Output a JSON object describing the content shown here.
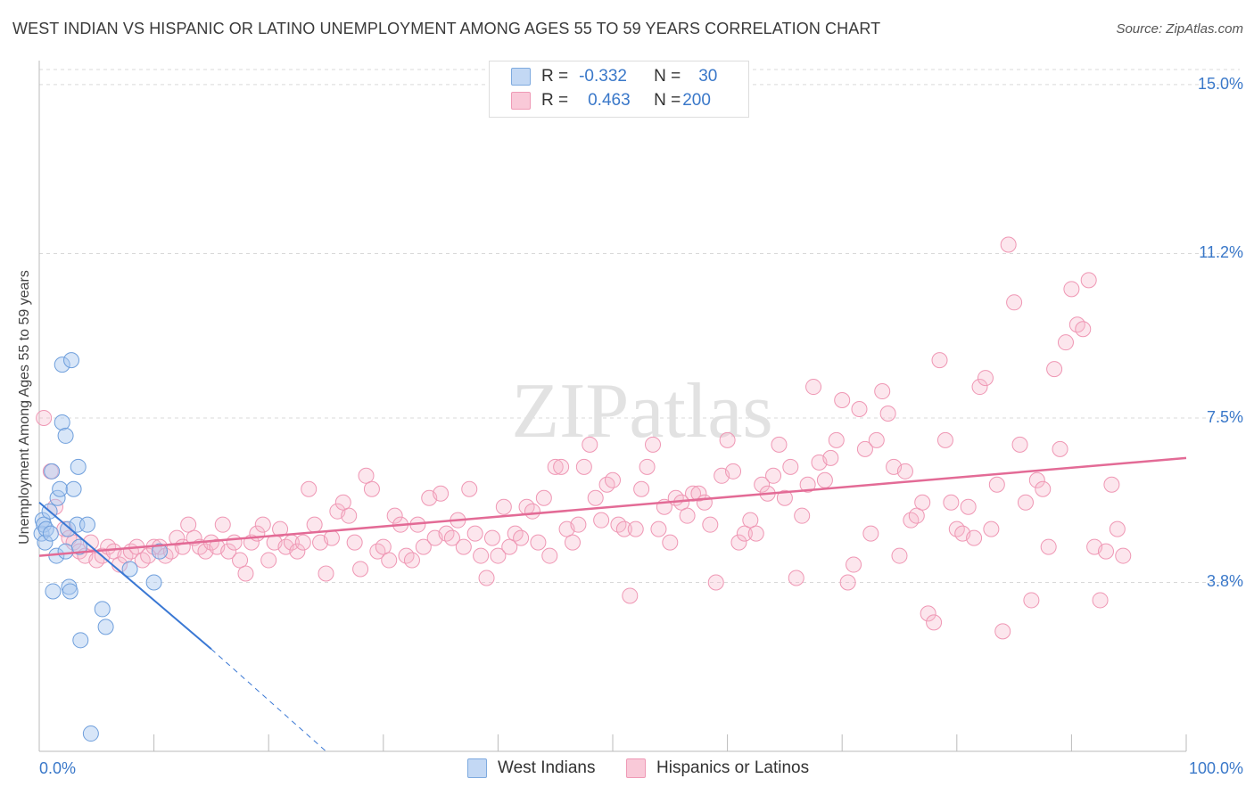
{
  "title": "WEST INDIAN VS HISPANIC OR LATINO UNEMPLOYMENT AMONG AGES 55 TO 59 YEARS CORRELATION CHART",
  "source": "Source: ZipAtlas.com",
  "watermark": "ZIPatlas",
  "legend": {
    "rows": [
      {
        "r_label": "R =",
        "r_value": "-0.332",
        "n_label": "N =",
        "n_value": "30",
        "color": "#a9c8f0"
      },
      {
        "r_label": "R =",
        "r_value": "0.463",
        "n_label": "N =",
        "n_value": "200",
        "color": "#f6b8cc"
      }
    ]
  },
  "bottom_legend": [
    "West Indians",
    "Hispanics or Latinos"
  ],
  "colors": {
    "blue": "#3a78d4",
    "blue_fill": "#a9c8f0",
    "pink": "#e36b96",
    "pink_fill": "#f6b8cc",
    "tick_text": "#3a78c9"
  },
  "chart_data": {
    "type": "scatter",
    "title": "WEST INDIAN VS HISPANIC OR LATINO UNEMPLOYMENT AMONG AGES 55 TO 59 YEARS CORRELATION CHART",
    "xlabel": "",
    "ylabel": "Unemployment Among Ages 55 to 59 years",
    "xlim": [
      0,
      100
    ],
    "ylim": [
      0,
      15.5
    ],
    "x_tick_labels": [
      "0.0%",
      "100.0%"
    ],
    "y_ticks": [
      3.8,
      7.5,
      11.2,
      15.0
    ],
    "y_tick_labels": [
      "3.8%",
      "7.5%",
      "11.2%",
      "15.0%"
    ],
    "series": [
      {
        "name": "West Indians",
        "R": -0.332,
        "N": 30,
        "trend": {
          "x": [
            0,
            15
          ],
          "y": [
            5.6,
            2.3
          ]
        },
        "trend_dashed": {
          "x": [
            15,
            25
          ],
          "y": [
            2.3,
            0.0
          ]
        },
        "points": [
          [
            0.2,
            4.9
          ],
          [
            0.3,
            5.2
          ],
          [
            0.4,
            5.1
          ],
          [
            0.5,
            4.7
          ],
          [
            0.6,
            5.0
          ],
          [
            1.0,
            4.9
          ],
          [
            0.9,
            5.4
          ],
          [
            1.1,
            6.3
          ],
          [
            1.5,
            4.4
          ],
          [
            1.6,
            5.7
          ],
          [
            1.8,
            5.9
          ],
          [
            2.0,
            8.7
          ],
          [
            2.0,
            7.4
          ],
          [
            2.3,
            7.1
          ],
          [
            2.5,
            5.0
          ],
          [
            2.3,
            4.5
          ],
          [
            2.6,
            3.7
          ],
          [
            2.7,
            3.6
          ],
          [
            2.8,
            8.8
          ],
          [
            3.0,
            5.9
          ],
          [
            3.3,
            5.1
          ],
          [
            3.4,
            6.4
          ],
          [
            3.5,
            4.6
          ],
          [
            3.6,
            2.5
          ],
          [
            4.2,
            5.1
          ],
          [
            5.5,
            3.2
          ],
          [
            5.8,
            2.8
          ],
          [
            7.9,
            4.1
          ],
          [
            10.0,
            3.8
          ],
          [
            4.5,
            0.4
          ],
          [
            1.2,
            3.6
          ],
          [
            10.5,
            4.5
          ]
        ]
      },
      {
        "name": "Hispanics or Latinos",
        "R": 0.463,
        "N": 200,
        "trend": {
          "x": [
            0,
            100
          ],
          "y": [
            4.4,
            6.6
          ]
        },
        "points": [
          [
            0.4,
            7.5
          ],
          [
            1.0,
            6.3
          ],
          [
            1.4,
            5.5
          ],
          [
            2.2,
            5.0
          ],
          [
            2.6,
            4.8
          ],
          [
            3.0,
            4.7
          ],
          [
            3.5,
            4.5
          ],
          [
            4.0,
            4.4
          ],
          [
            4.5,
            4.7
          ],
          [
            5.0,
            4.3
          ],
          [
            5.5,
            4.4
          ],
          [
            6.0,
            4.6
          ],
          [
            6.5,
            4.5
          ],
          [
            7.0,
            4.2
          ],
          [
            7.5,
            4.4
          ],
          [
            8.0,
            4.5
          ],
          [
            8.5,
            4.6
          ],
          [
            9.0,
            4.3
          ],
          [
            9.5,
            4.4
          ],
          [
            10.0,
            4.6
          ],
          [
            10.5,
            4.6
          ],
          [
            11.0,
            4.4
          ],
          [
            11.5,
            4.5
          ],
          [
            12.0,
            4.8
          ],
          [
            12.5,
            4.6
          ],
          [
            13.0,
            5.1
          ],
          [
            13.5,
            4.8
          ],
          [
            14.0,
            4.6
          ],
          [
            14.5,
            4.5
          ],
          [
            15.0,
            4.7
          ],
          [
            15.5,
            4.6
          ],
          [
            16.0,
            5.1
          ],
          [
            16.5,
            4.5
          ],
          [
            17.0,
            4.7
          ],
          [
            17.5,
            4.3
          ],
          [
            18.0,
            4.0
          ],
          [
            18.5,
            4.7
          ],
          [
            19.0,
            4.9
          ],
          [
            19.5,
            5.1
          ],
          [
            20.0,
            4.3
          ],
          [
            20.5,
            4.7
          ],
          [
            21.0,
            5.0
          ],
          [
            21.5,
            4.6
          ],
          [
            22.0,
            4.7
          ],
          [
            22.5,
            4.5
          ],
          [
            23.0,
            4.7
          ],
          [
            23.5,
            5.9
          ],
          [
            24.0,
            5.1
          ],
          [
            24.5,
            4.7
          ],
          [
            25.0,
            4.0
          ],
          [
            25.5,
            4.8
          ],
          [
            26.0,
            5.4
          ],
          [
            26.5,
            5.6
          ],
          [
            27.0,
            5.3
          ],
          [
            27.5,
            4.7
          ],
          [
            28.0,
            4.1
          ],
          [
            28.5,
            6.2
          ],
          [
            29.0,
            5.9
          ],
          [
            29.5,
            4.5
          ],
          [
            30.0,
            4.6
          ],
          [
            30.5,
            4.3
          ],
          [
            31.0,
            5.3
          ],
          [
            31.5,
            5.1
          ],
          [
            32.0,
            4.4
          ],
          [
            32.5,
            4.3
          ],
          [
            33.0,
            5.1
          ],
          [
            33.5,
            4.6
          ],
          [
            34.0,
            5.7
          ],
          [
            34.5,
            4.8
          ],
          [
            35.0,
            5.8
          ],
          [
            35.5,
            4.9
          ],
          [
            36.0,
            4.8
          ],
          [
            36.5,
            5.2
          ],
          [
            37.0,
            4.6
          ],
          [
            37.5,
            5.9
          ],
          [
            38.0,
            4.9
          ],
          [
            38.5,
            4.4
          ],
          [
            39.0,
            3.9
          ],
          [
            39.5,
            4.8
          ],
          [
            40.0,
            4.4
          ],
          [
            40.5,
            5.5
          ],
          [
            41.0,
            4.6
          ],
          [
            41.5,
            4.9
          ],
          [
            42.0,
            4.8
          ],
          [
            42.5,
            5.5
          ],
          [
            43.0,
            5.4
          ],
          [
            43.5,
            4.7
          ],
          [
            44.0,
            5.7
          ],
          [
            44.5,
            4.4
          ],
          [
            45.0,
            6.4
          ],
          [
            45.5,
            6.4
          ],
          [
            46.0,
            5.0
          ],
          [
            46.5,
            4.7
          ],
          [
            47.0,
            5.1
          ],
          [
            47.5,
            6.4
          ],
          [
            48.0,
            6.9
          ],
          [
            48.5,
            5.7
          ],
          [
            49.0,
            5.2
          ],
          [
            49.5,
            6.0
          ],
          [
            50.0,
            6.1
          ],
          [
            50.5,
            5.1
          ],
          [
            51.0,
            5.0
          ],
          [
            51.5,
            3.5
          ],
          [
            52.0,
            5.0
          ],
          [
            52.5,
            5.9
          ],
          [
            53.0,
            6.4
          ],
          [
            53.5,
            6.9
          ],
          [
            54.0,
            5.0
          ],
          [
            54.5,
            5.5
          ],
          [
            55.0,
            4.7
          ],
          [
            55.5,
            5.7
          ],
          [
            56.0,
            5.6
          ],
          [
            56.5,
            5.3
          ],
          [
            57.0,
            5.8
          ],
          [
            57.5,
            5.8
          ],
          [
            58.0,
            5.6
          ],
          [
            58.5,
            5.1
          ],
          [
            59.0,
            3.8
          ],
          [
            59.5,
            6.2
          ],
          [
            60.0,
            7.0
          ],
          [
            60.5,
            6.3
          ],
          [
            61.0,
            4.7
          ],
          [
            61.5,
            4.9
          ],
          [
            62.0,
            5.2
          ],
          [
            62.5,
            4.9
          ],
          [
            63.0,
            6.0
          ],
          [
            63.5,
            5.8
          ],
          [
            64.0,
            6.2
          ],
          [
            64.5,
            6.9
          ],
          [
            65.0,
            5.7
          ],
          [
            65.5,
            6.4
          ],
          [
            66.0,
            3.9
          ],
          [
            66.5,
            5.3
          ],
          [
            67.0,
            6.0
          ],
          [
            67.5,
            8.2
          ],
          [
            68.0,
            6.5
          ],
          [
            68.5,
            6.1
          ],
          [
            69.0,
            6.6
          ],
          [
            69.5,
            7.0
          ],
          [
            70.0,
            7.9
          ],
          [
            70.5,
            3.8
          ],
          [
            71.0,
            4.2
          ],
          [
            71.5,
            7.7
          ],
          [
            72.0,
            6.8
          ],
          [
            72.5,
            4.9
          ],
          [
            73.0,
            7.0
          ],
          [
            73.5,
            8.1
          ],
          [
            74.0,
            7.6
          ],
          [
            74.5,
            6.4
          ],
          [
            75.0,
            4.4
          ],
          [
            75.5,
            6.3
          ],
          [
            76.0,
            5.2
          ],
          [
            76.5,
            5.3
          ],
          [
            77.0,
            5.6
          ],
          [
            77.5,
            3.1
          ],
          [
            78.0,
            2.9
          ],
          [
            78.5,
            8.8
          ],
          [
            79.0,
            7.0
          ],
          [
            79.5,
            5.6
          ],
          [
            80.0,
            5.0
          ],
          [
            80.5,
            4.9
          ],
          [
            81.0,
            5.5
          ],
          [
            81.5,
            4.8
          ],
          [
            82.0,
            8.2
          ],
          [
            82.5,
            8.4
          ],
          [
            83.0,
            5.0
          ],
          [
            83.5,
            6.0
          ],
          [
            84.0,
            2.7
          ],
          [
            84.5,
            11.4
          ],
          [
            85.0,
            10.1
          ],
          [
            85.5,
            6.9
          ],
          [
            86.0,
            5.6
          ],
          [
            86.5,
            3.4
          ],
          [
            87.0,
            6.1
          ],
          [
            87.5,
            5.9
          ],
          [
            88.0,
            4.6
          ],
          [
            88.5,
            8.6
          ],
          [
            89.0,
            6.8
          ],
          [
            89.5,
            9.2
          ],
          [
            90.0,
            10.4
          ],
          [
            90.5,
            9.6
          ],
          [
            91.0,
            9.5
          ],
          [
            91.5,
            10.6
          ],
          [
            92.0,
            4.6
          ],
          [
            92.5,
            3.4
          ],
          [
            93.0,
            4.5
          ],
          [
            93.5,
            6.0
          ],
          [
            94.0,
            5.0
          ],
          [
            94.5,
            4.4
          ]
        ]
      }
    ]
  }
}
